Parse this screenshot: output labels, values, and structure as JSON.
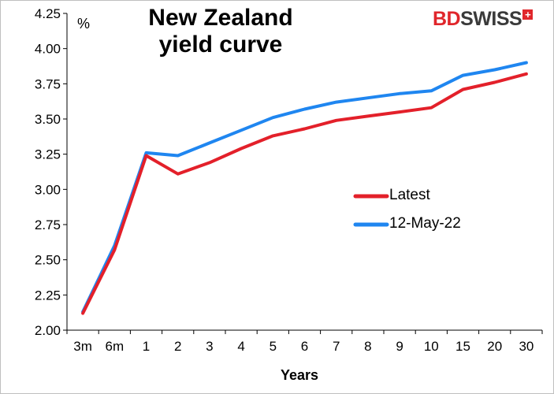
{
  "logo": {
    "text_bd": "BD",
    "text_swiss": "SWISS",
    "plus": "+"
  },
  "chart_data": {
    "type": "line",
    "title_line1": "New Zealand",
    "title_line2": "yield curve",
    "ylabel": "%",
    "xlabel": "Years",
    "categories": [
      "3m",
      "6m",
      "1",
      "2",
      "3",
      "4",
      "5",
      "6",
      "7",
      "8",
      "9",
      "10",
      "15",
      "20",
      "30"
    ],
    "ylim": [
      2.0,
      4.25
    ],
    "yticks": [
      "2.00",
      "2.25",
      "2.50",
      "2.75",
      "3.00",
      "3.25",
      "3.50",
      "3.75",
      "4.00",
      "4.25"
    ],
    "grid": false,
    "legend_position": "center-right",
    "series": [
      {
        "name": "Latest",
        "color": "#e3202a",
        "values": [
          2.12,
          2.57,
          3.24,
          3.11,
          3.19,
          3.29,
          3.38,
          3.43,
          3.49,
          3.52,
          3.55,
          3.58,
          3.71,
          3.76,
          3.82
        ]
      },
      {
        "name": "12-May-22",
        "color": "#1f86f0",
        "values": [
          2.13,
          2.6,
          3.26,
          3.24,
          3.33,
          3.42,
          3.51,
          3.57,
          3.62,
          3.65,
          3.68,
          3.7,
          3.81,
          3.85,
          3.9
        ]
      }
    ]
  }
}
